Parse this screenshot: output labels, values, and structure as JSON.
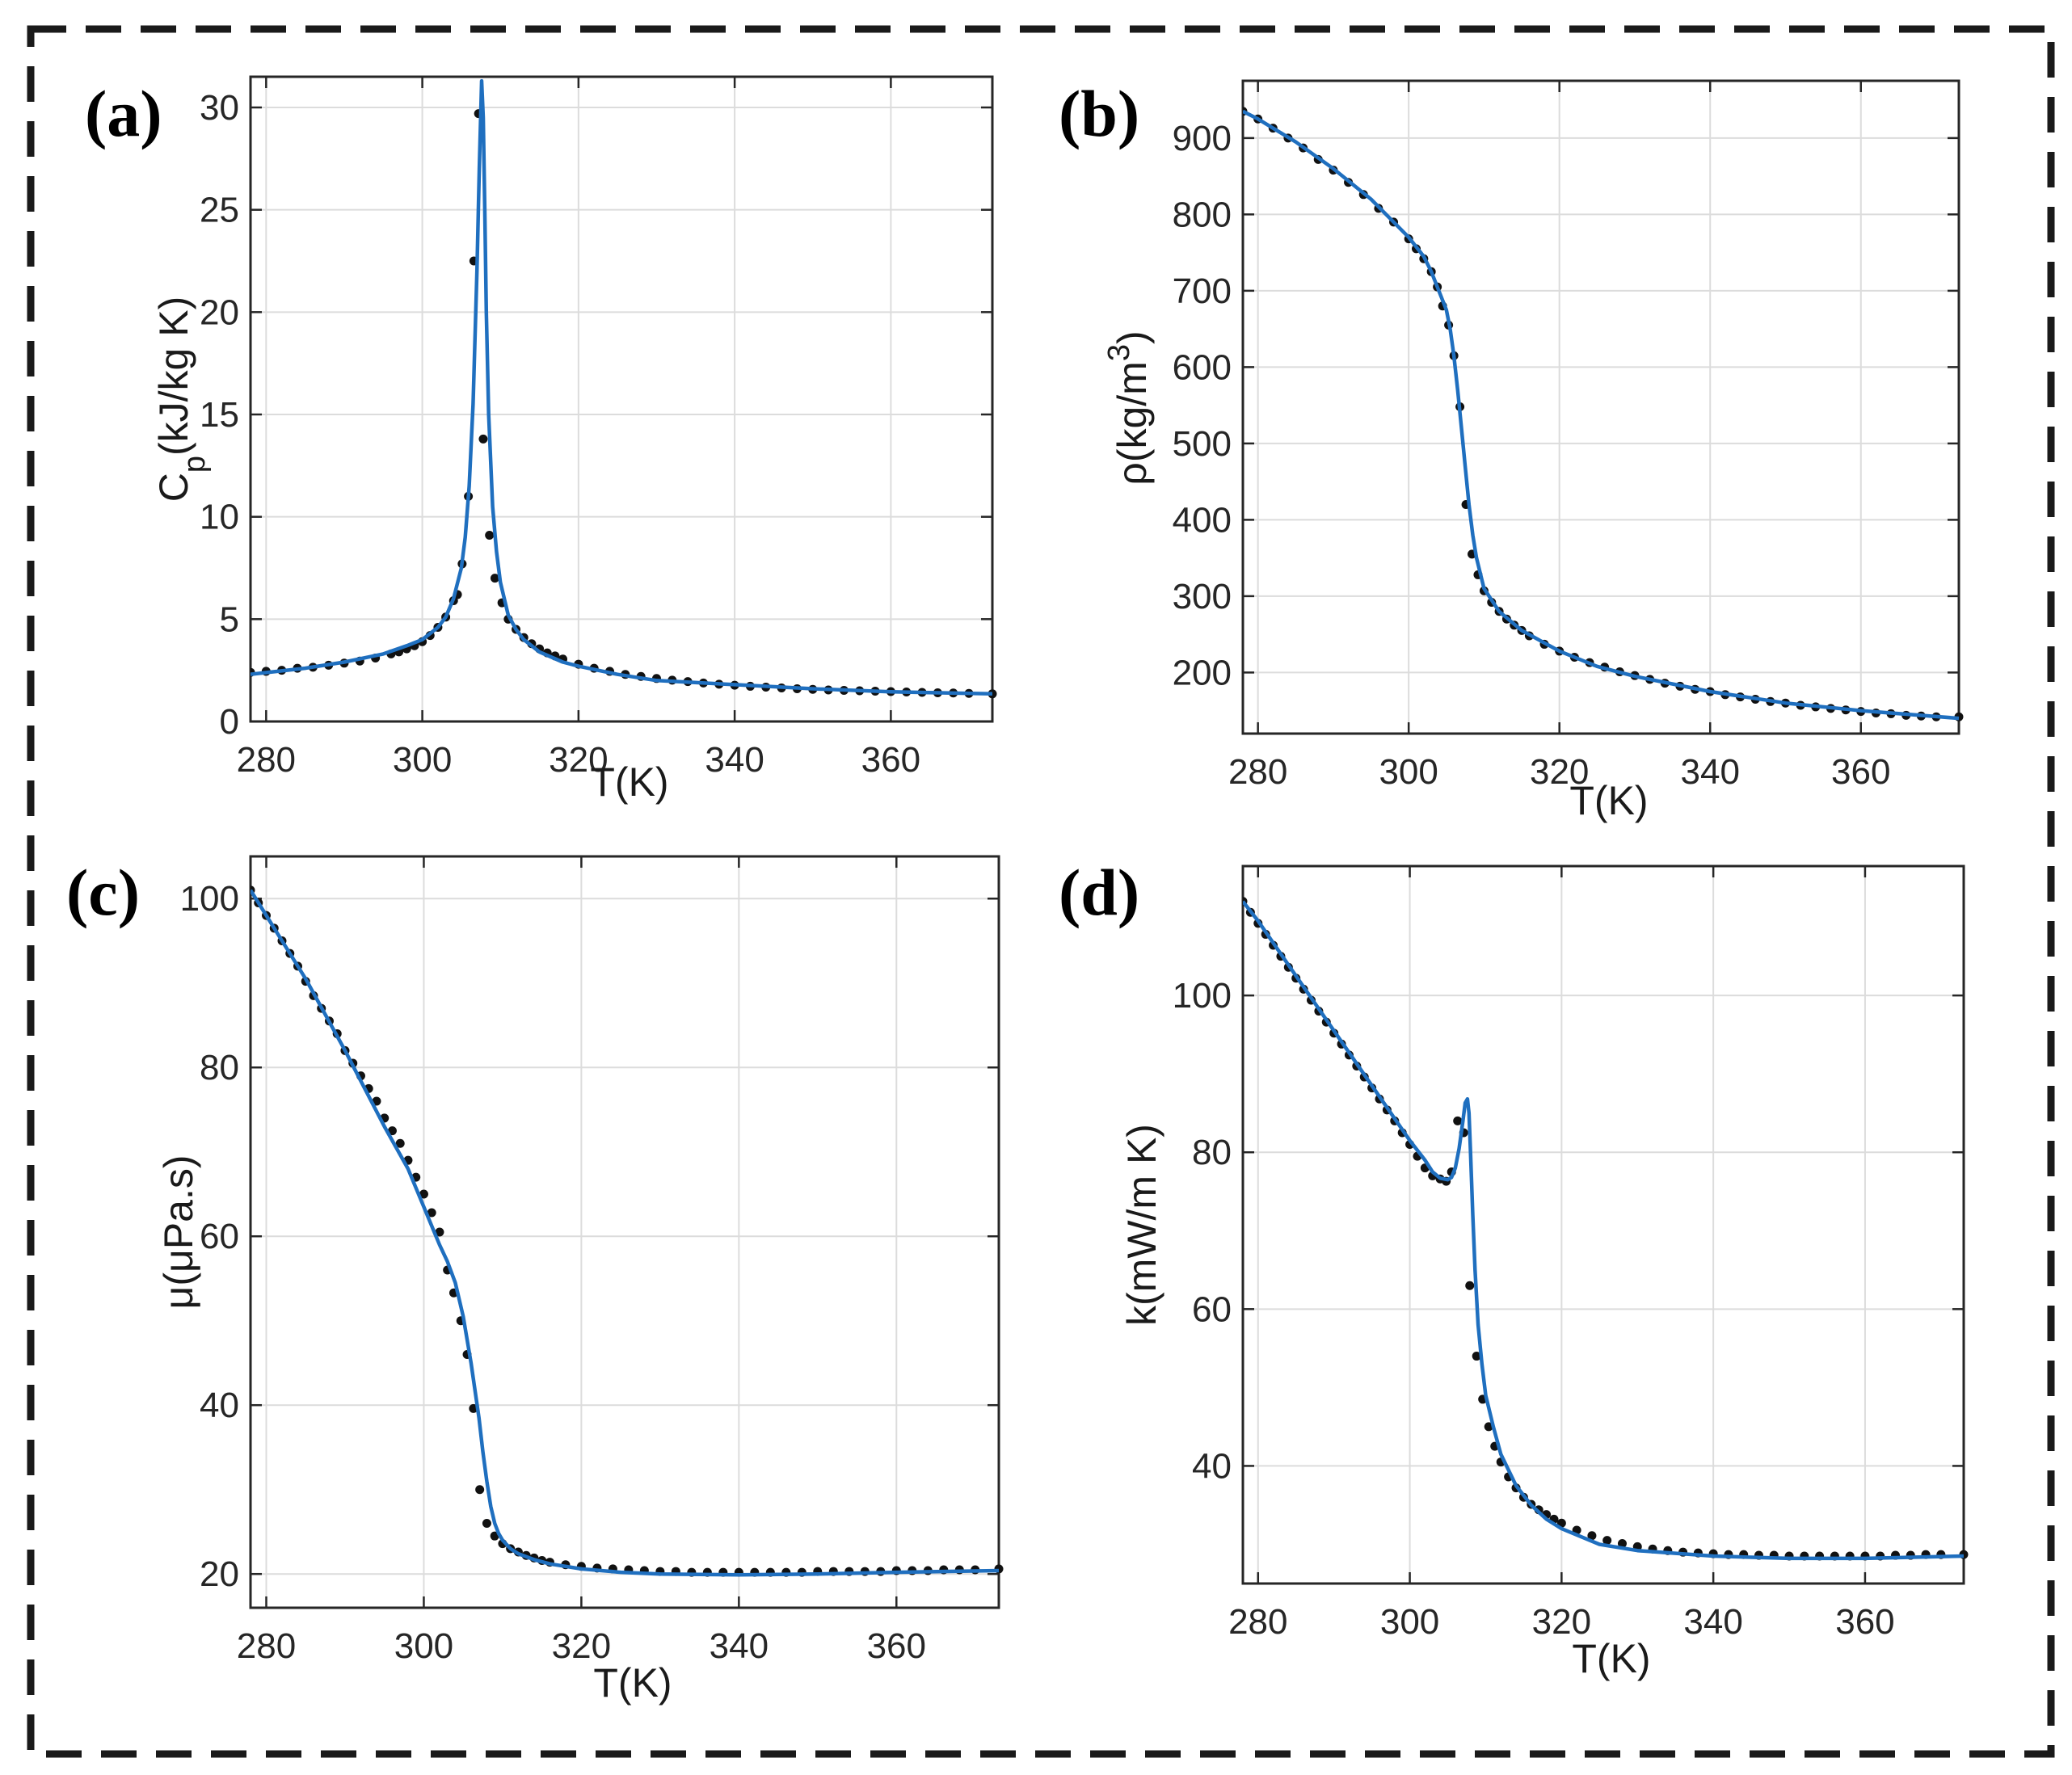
{
  "colors": {
    "fit_line": "#1f6fbf",
    "markers": "#111111"
  },
  "chart_data": [
    {
      "id": "a",
      "type": "line",
      "panel_label": "(a)",
      "title": "",
      "xlabel": "T(K)",
      "ylabel_main": "C",
      "ylabel_sub": "p",
      "ylabel_rest": "(kJ/kg K)",
      "xlim": [
        278,
        373
      ],
      "ylim": [
        0,
        31.5
      ],
      "xticks": [
        280,
        300,
        320,
        340,
        360
      ],
      "yticks": [
        0,
        5,
        10,
        15,
        20,
        25,
        30
      ],
      "grid": true,
      "series": [
        {
          "name": "fit",
          "style": "line",
          "x": [
            278,
            285,
            290,
            295,
            298,
            300,
            302,
            303,
            304,
            305,
            305.5,
            306,
            306.5,
            307,
            307.3,
            307.6,
            307.8,
            308,
            308.2,
            308.5,
            309,
            309.5,
            310,
            311,
            312,
            313,
            315,
            318,
            320,
            325,
            330,
            340,
            350,
            360,
            373
          ],
          "y": [
            2.3,
            2.6,
            2.9,
            3.3,
            3.7,
            4.0,
            4.6,
            5.1,
            6.0,
            7.5,
            9.0,
            11.5,
            15.5,
            22.0,
            27.0,
            31.3,
            29.5,
            25.0,
            20.0,
            15.0,
            10.5,
            8.3,
            6.8,
            5.2,
            4.5,
            4.0,
            3.4,
            2.9,
            2.7,
            2.3,
            2.0,
            1.8,
            1.6,
            1.45,
            1.35
          ]
        },
        {
          "name": "data",
          "style": "markers",
          "x": [
            278,
            280,
            282,
            284,
            286,
            288,
            290,
            292,
            294,
            296,
            297,
            298,
            299,
            300,
            301,
            302,
            303,
            304,
            304.5,
            305.1,
            305.9,
            306.6,
            307.2,
            307.8,
            308.6,
            309.3,
            310.2,
            311.0,
            312,
            313,
            314,
            315,
            316,
            317,
            318,
            320,
            322,
            324,
            326,
            328,
            330,
            332,
            334,
            336,
            338,
            340,
            342,
            344,
            346,
            348,
            350,
            352,
            354,
            356,
            358,
            360,
            362,
            364,
            366,
            368,
            370,
            373
          ],
          "y": [
            2.4,
            2.45,
            2.5,
            2.6,
            2.65,
            2.75,
            2.85,
            2.95,
            3.1,
            3.3,
            3.4,
            3.55,
            3.7,
            3.9,
            4.2,
            4.6,
            5.1,
            5.9,
            6.2,
            7.7,
            11.0,
            22.5,
            29.7,
            13.8,
            9.1,
            7.0,
            5.8,
            5.0,
            4.5,
            4.1,
            3.8,
            3.55,
            3.35,
            3.2,
            3.05,
            2.8,
            2.6,
            2.45,
            2.3,
            2.2,
            2.1,
            2.02,
            1.95,
            1.88,
            1.82,
            1.77,
            1.72,
            1.68,
            1.64,
            1.6,
            1.57,
            1.54,
            1.52,
            1.5,
            1.48,
            1.46,
            1.44,
            1.42,
            1.4,
            1.39,
            1.37,
            1.35
          ]
        }
      ]
    },
    {
      "id": "b",
      "type": "line",
      "panel_label": "(b)",
      "title": "",
      "xlabel": "T(K)",
      "ylabel_main": "ρ(kg/m",
      "ylabel_sup": "3",
      "ylabel_rest": ")",
      "xlim": [
        278,
        373
      ],
      "ylim": [
        120,
        975
      ],
      "xticks": [
        280,
        300,
        320,
        340,
        360
      ],
      "yticks": [
        200,
        300,
        400,
        500,
        600,
        700,
        800,
        900
      ],
      "grid": true,
      "series": [
        {
          "name": "fit",
          "style": "line",
          "x": [
            278,
            280,
            285,
            290,
            295,
            300,
            302,
            303,
            304,
            305,
            305.5,
            306,
            306.5,
            307,
            307.5,
            308,
            308.5,
            309,
            310,
            312,
            315,
            320,
            325,
            330,
            340,
            350,
            360,
            373
          ],
          "y": [
            935,
            925,
            895,
            860,
            820,
            770,
            745,
            725,
            700,
            675,
            650,
            615,
            570,
            520,
            470,
            420,
            380,
            350,
            310,
            280,
            255,
            228,
            208,
            195,
            175,
            160,
            150,
            140
          ]
        },
        {
          "name": "data",
          "style": "markers",
          "x": [
            278,
            280,
            282,
            284,
            286,
            288,
            290,
            292,
            294,
            296,
            298,
            300,
            301,
            302,
            303,
            303.8,
            304.5,
            305.3,
            306.0,
            306.8,
            307.6,
            308.4,
            309.2,
            310,
            311,
            312,
            313,
            314,
            315,
            316,
            318,
            320,
            322,
            324,
            326,
            328,
            330,
            332,
            334,
            336,
            338,
            340,
            342,
            344,
            346,
            348,
            350,
            352,
            354,
            356,
            358,
            360,
            362,
            364,
            366,
            368,
            370,
            373
          ],
          "y": [
            935,
            925,
            913,
            900,
            887,
            872,
            858,
            842,
            826,
            808,
            790,
            768,
            755,
            742,
            725,
            705,
            680,
            655,
            615,
            548,
            420,
            355,
            328,
            307,
            292,
            280,
            270,
            262,
            255,
            248,
            237,
            228,
            220,
            213,
            207,
            201,
            196,
            191,
            186,
            182,
            178,
            175,
            171,
            168,
            165,
            162,
            160,
            157,
            155,
            153,
            151,
            149,
            147,
            146,
            144,
            143,
            142,
            142
          ]
        }
      ]
    },
    {
      "id": "c",
      "type": "line",
      "panel_label": "(c)",
      "title": "",
      "xlabel": "T(K)",
      "ylabel_main": "μ(μPa.s)",
      "xlim": [
        278,
        373
      ],
      "ylim": [
        16,
        105
      ],
      "xticks": [
        280,
        300,
        320,
        340,
        360
      ],
      "yticks": [
        20,
        40,
        60,
        80,
        100
      ],
      "grid": true,
      "series": [
        {
          "name": "fit",
          "style": "line",
          "x": [
            278,
            280,
            285,
            290,
            295,
            298,
            300,
            302,
            303,
            304,
            305,
            306,
            307,
            307.5,
            308,
            308.5,
            309,
            309.5,
            310,
            311,
            312,
            314,
            316,
            320,
            325,
            330,
            340,
            350,
            360,
            373
          ],
          "y": [
            101,
            98,
            90.5,
            82,
            73,
            68,
            63.5,
            59,
            57,
            54.5,
            50.5,
            45,
            38.5,
            34.5,
            31,
            28,
            26,
            24.8,
            24,
            23,
            22.4,
            21.7,
            21.2,
            20.6,
            20.2,
            20.0,
            19.9,
            20.0,
            20.2,
            20.4
          ]
        },
        {
          "name": "data",
          "style": "markers",
          "x": [
            278,
            279,
            280,
            281,
            282,
            283,
            284,
            285,
            286,
            287,
            288,
            289,
            290,
            291,
            292,
            293,
            294,
            295,
            296,
            297,
            298,
            299,
            300,
            301,
            302,
            303,
            303.8,
            304.7,
            305.5,
            306.3,
            307.1,
            308,
            309,
            310,
            311,
            312,
            313,
            314,
            315,
            316,
            318,
            320,
            322,
            324,
            326,
            328,
            330,
            332,
            334,
            336,
            338,
            340,
            342,
            344,
            346,
            348,
            350,
            352,
            354,
            356,
            358,
            360,
            362,
            364,
            366,
            368,
            370,
            373
          ],
          "y": [
            101,
            99.5,
            98,
            96.5,
            95,
            93.5,
            92,
            90.2,
            88.5,
            87,
            85.5,
            84,
            82,
            80.5,
            79,
            77.5,
            76,
            74,
            72.5,
            71,
            69,
            67,
            65,
            62.8,
            60.5,
            56,
            53.3,
            50,
            46,
            39.6,
            30,
            26,
            24.5,
            23.6,
            23,
            22.6,
            22.2,
            21.9,
            21.6,
            21.4,
            21.1,
            20.9,
            20.7,
            20.6,
            20.5,
            20.4,
            20.3,
            20.3,
            20.2,
            20.2,
            20.2,
            20.2,
            20.2,
            20.2,
            20.2,
            20.2,
            20.3,
            20.3,
            20.3,
            20.3,
            20.3,
            20.4,
            20.4,
            20.4,
            20.5,
            20.5,
            20.5,
            20.6
          ]
        }
      ]
    },
    {
      "id": "d",
      "type": "line",
      "panel_label": "(d)",
      "title": "",
      "xlabel": "T(K)",
      "ylabel_main": "k(mW/m K)",
      "xlim": [
        278,
        373
      ],
      "ylim": [
        25,
        116.5
      ],
      "xticks": [
        280,
        300,
        320,
        340,
        360
      ],
      "yticks": [
        40,
        60,
        80,
        100
      ],
      "grid": true,
      "series": [
        {
          "name": "fit",
          "style": "line",
          "x": [
            278,
            280,
            285,
            290,
            295,
            300,
            302,
            303,
            304,
            305,
            305.5,
            306,
            306.5,
            307,
            307.3,
            307.6,
            307.8,
            308,
            308.3,
            308.6,
            309,
            309.5,
            310,
            311,
            312,
            314,
            316,
            318,
            320,
            325,
            330,
            340,
            350,
            360,
            373
          ],
          "y": [
            112,
            109.5,
            102.5,
            95.5,
            88.5,
            81.5,
            79,
            77.5,
            76.7,
            76.5,
            76.8,
            78,
            80.5,
            84,
            86.3,
            86.8,
            85,
            80,
            72,
            65,
            58,
            53,
            49,
            45,
            41.5,
            37.5,
            35,
            33.2,
            32,
            30,
            29.2,
            28.5,
            28.2,
            28.2,
            28.5
          ]
        },
        {
          "name": "data",
          "style": "markers",
          "x": [
            278,
            279,
            280,
            281,
            282,
            283,
            284,
            285,
            286,
            287,
            288,
            289,
            290,
            291,
            292,
            293,
            294,
            295,
            296,
            297,
            298,
            299,
            300,
            301,
            302,
            303,
            304,
            304.8,
            305.5,
            306.3,
            307.1,
            307.9,
            308.8,
            309.6,
            310.4,
            311.2,
            312,
            313,
            314,
            315,
            316,
            317,
            318,
            319,
            320,
            322,
            324,
            326,
            328,
            330,
            332,
            334,
            336,
            338,
            340,
            342,
            344,
            346,
            348,
            350,
            352,
            354,
            356,
            358,
            360,
            362,
            364,
            366,
            368,
            370,
            373
          ],
          "y": [
            112,
            110.6,
            109.2,
            107.8,
            106.4,
            105,
            103.6,
            102.2,
            100.8,
            99.4,
            98,
            96.6,
            95.2,
            93.8,
            92.4,
            91,
            89.6,
            88.2,
            86.8,
            85.4,
            84,
            82.5,
            81,
            79.5,
            78,
            77,
            76.6,
            76.3,
            77.5,
            84,
            82.5,
            63,
            54,
            48.5,
            45,
            42.5,
            40.5,
            38.6,
            37.2,
            36,
            35.1,
            34.4,
            33.8,
            33.2,
            32.7,
            31.8,
            31.1,
            30.5,
            30.1,
            29.7,
            29.4,
            29.2,
            29,
            28.9,
            28.8,
            28.7,
            28.7,
            28.6,
            28.6,
            28.5,
            28.5,
            28.5,
            28.5,
            28.5,
            28.5,
            28.5,
            28.6,
            28.6,
            28.7,
            28.7,
            28.7
          ]
        }
      ]
    }
  ]
}
